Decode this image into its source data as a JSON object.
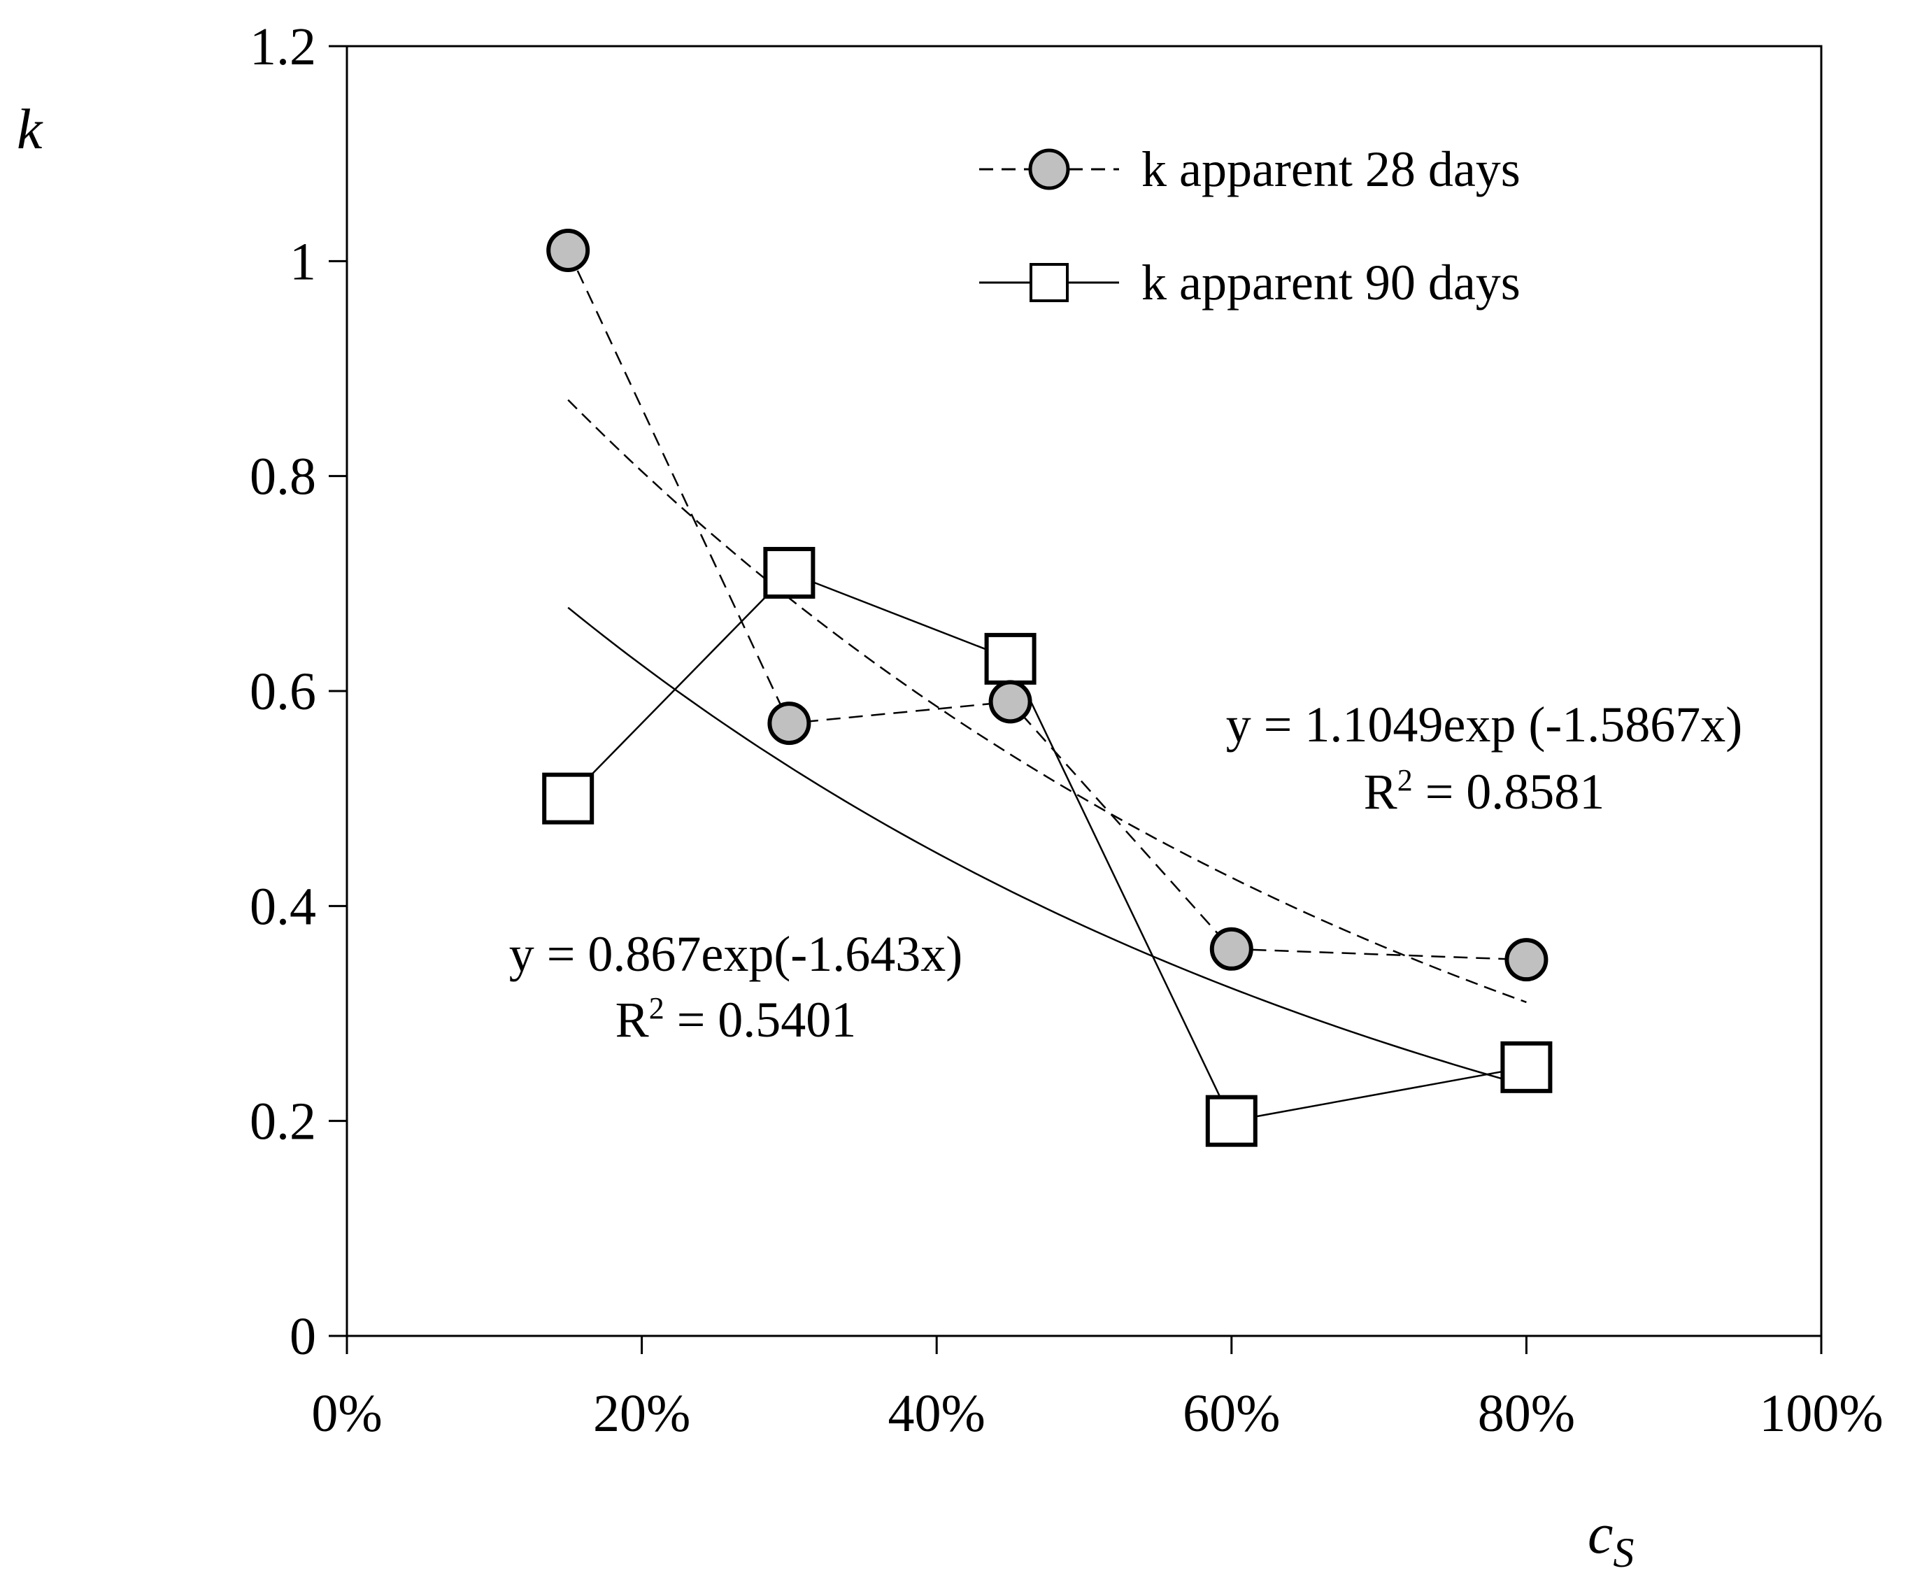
{
  "chart_data": {
    "type": "scatter",
    "title": "",
    "xlabel": "c",
    "xlabel_sub": "S",
    "ylabel": "k",
    "xlim": [
      0,
      1
    ],
    "ylim": [
      0,
      1.2
    ],
    "xticks": [
      0,
      0.2,
      0.4,
      0.6,
      0.8,
      1.0
    ],
    "xtick_labels": [
      "0%",
      "20%",
      "40%",
      "60%",
      "80%",
      "100%"
    ],
    "yticks": [
      0,
      0.2,
      0.4,
      0.6,
      0.8,
      1.0,
      1.2
    ],
    "ytick_labels": [
      "0",
      "0.2",
      "0.4",
      "0.6",
      "0.8",
      "1",
      "1.2"
    ],
    "grid": false,
    "legend_position": "top-right",
    "series": [
      {
        "name": "k apparent 28 days",
        "marker": "circle",
        "line_style": "dashed",
        "marker_color": "#c0c0c0",
        "x": [
          0.15,
          0.3,
          0.45,
          0.6,
          0.8
        ],
        "y": [
          1.01,
          0.57,
          0.59,
          0.36,
          0.35
        ],
        "trendline": {
          "type": "exponential",
          "a": 1.1049,
          "b": -1.5867,
          "x_range": [
            0.15,
            0.8
          ],
          "line_style": "dashed"
        }
      },
      {
        "name": "k apparent 90 days",
        "marker": "square",
        "line_style": "solid",
        "marker_color": "#ffffff",
        "x": [
          0.15,
          0.3,
          0.45,
          0.6,
          0.8
        ],
        "y": [
          0.5,
          0.71,
          0.63,
          0.2,
          0.25
        ],
        "trendline": {
          "type": "exponential",
          "a": 0.867,
          "b": -1.643,
          "x_range": [
            0.15,
            0.8
          ],
          "line_style": "solid"
        }
      }
    ],
    "annotations": [
      {
        "equation": "y = 1.1049exp (-1.5867x)",
        "r_prefix": "R",
        "r_sup": "2",
        "r_value": " = 0.8581"
      },
      {
        "equation": "y = 0.867exp(-1.643x)",
        "r_prefix": "R",
        "r_sup": "2",
        "r_value": " = 0.5401"
      }
    ]
  }
}
